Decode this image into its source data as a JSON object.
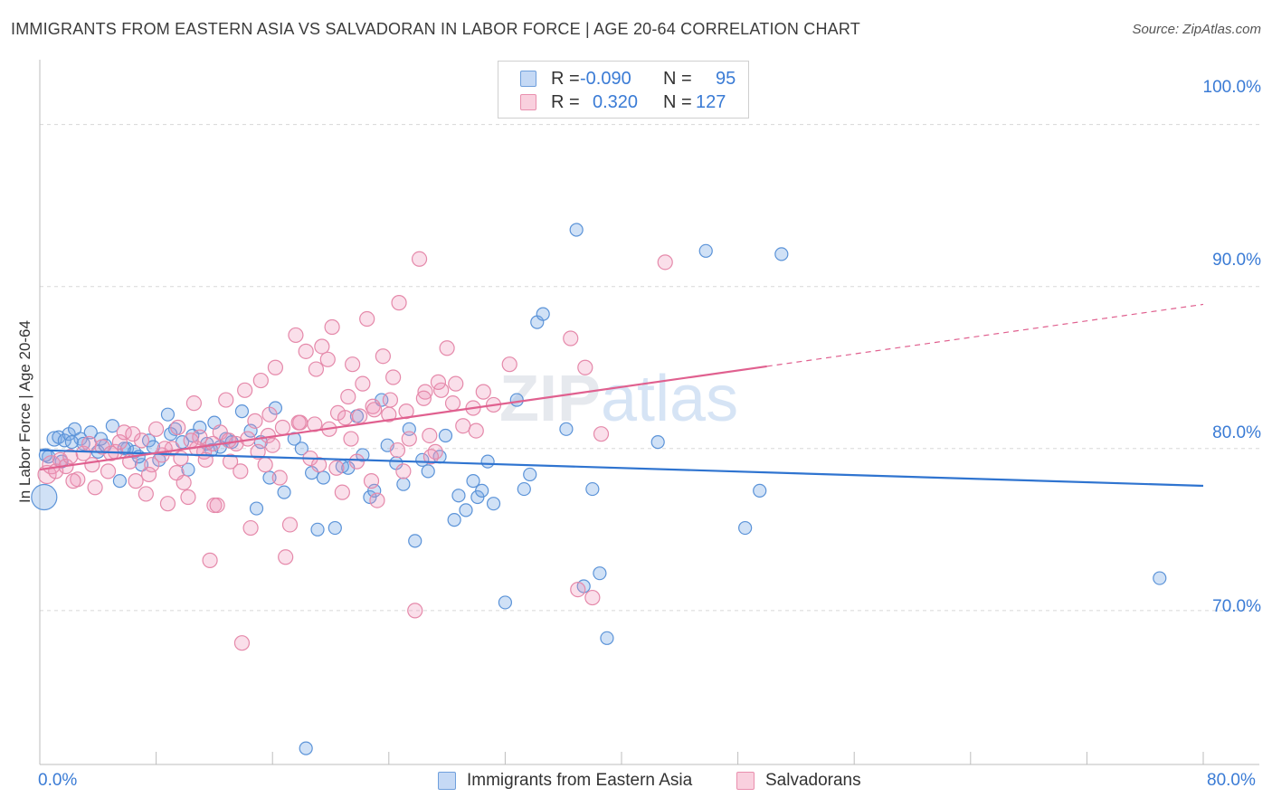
{
  "title": "IMMIGRANTS FROM EASTERN ASIA VS SALVADORAN IN LABOR FORCE | AGE 20-64 CORRELATION CHART",
  "source": "Source: ZipAtlas.com",
  "watermark": {
    "zip": "ZIP",
    "atlas": "atlas"
  },
  "legend": {
    "rows": [
      {
        "r_label": "R = ",
        "r_value": "-0.090",
        "n_label": "N = ",
        "n_value": "95",
        "color": "#a9c8ef",
        "border": "#6f9fdc"
      },
      {
        "r_label": "R = ",
        "r_value": "0.320",
        "n_label": "N = ",
        "n_value": "127",
        "color": "#f7c1d2",
        "border": "#e98fae"
      }
    ]
  },
  "bottom_legend": {
    "series1": "Immigrants from Eastern Asia",
    "series2": "Salvadorans"
  },
  "y_axis_label": "In Labor Force | Age 20-64",
  "y_ticks": [
    "100.0%",
    "90.0%",
    "80.0%",
    "70.0%"
  ],
  "x_ticks": [
    "0.0%",
    "80.0%"
  ],
  "colors": {
    "blue_fill": "rgba(120,170,230,0.35)",
    "blue_stroke": "#5b93d8",
    "blue_line": "#2f74d0",
    "pink_fill": "rgba(240,150,185,0.30)",
    "pink_stroke": "#e589aa",
    "pink_line": "#e0608f",
    "grid": "#d8d8d8",
    "tick_text": "#3a7bd5"
  },
  "chart_data": {
    "type": "scatter",
    "xlim": [
      0,
      80
    ],
    "ylim": [
      60.5,
      104
    ],
    "xlabel": "",
    "ylabel": "In Labor Force | Age 20-64",
    "y_tick_values": [
      100,
      90,
      80,
      70
    ],
    "grid": true,
    "legend_placement": "top-center",
    "series": [
      {
        "name": "Immigrants from Eastern Asia",
        "r": -0.09,
        "n": 95,
        "trend": {
          "x": [
            0,
            80
          ],
          "y": [
            79.9,
            77.7
          ],
          "dashed_from": null
        },
        "points": [
          [
            0.3,
            77.0,
            14
          ],
          [
            0.6,
            79.5,
            7
          ],
          [
            1.0,
            80.6,
            8
          ],
          [
            1.3,
            80.7,
            7
          ],
          [
            1.7,
            80.5,
            7
          ],
          [
            2.0,
            80.9,
            7
          ],
          [
            2.4,
            81.2,
            7
          ],
          [
            2.8,
            80.6,
            7
          ],
          [
            3.5,
            81.0,
            7
          ],
          [
            4.0,
            79.8,
            7
          ],
          [
            4.5,
            80.2,
            7
          ],
          [
            5.0,
            81.4,
            7
          ],
          [
            5.5,
            78.0,
            7
          ],
          [
            6.0,
            80.0,
            7
          ],
          [
            6.5,
            79.8,
            7
          ],
          [
            7.0,
            79.0,
            7
          ],
          [
            7.5,
            80.5,
            7
          ],
          [
            8.2,
            79.3,
            7
          ],
          [
            8.8,
            82.1,
            7
          ],
          [
            9.3,
            81.2,
            7
          ],
          [
            9.8,
            80.4,
            7
          ],
          [
            10.2,
            78.7,
            7
          ],
          [
            11.0,
            81.3,
            7
          ],
          [
            11.5,
            80.3,
            7
          ],
          [
            12.0,
            81.6,
            7
          ],
          [
            12.8,
            80.6,
            7
          ],
          [
            13.2,
            80.4,
            7
          ],
          [
            13.9,
            82.3,
            7
          ],
          [
            14.5,
            81.1,
            7
          ],
          [
            14.9,
            76.3,
            7
          ],
          [
            15.8,
            78.2,
            7
          ],
          [
            16.2,
            82.5,
            7
          ],
          [
            16.8,
            77.3,
            7
          ],
          [
            17.5,
            80.6,
            7
          ],
          [
            18.0,
            80.0,
            7
          ],
          [
            18.7,
            78.5,
            7
          ],
          [
            19.1,
            75.0,
            7
          ],
          [
            19.5,
            78.2,
            7
          ],
          [
            20.3,
            75.1,
            7
          ],
          [
            20.8,
            78.9,
            7
          ],
          [
            21.2,
            78.8,
            7
          ],
          [
            21.8,
            82.0,
            7
          ],
          [
            22.2,
            79.6,
            7
          ],
          [
            22.7,
            77.0,
            7
          ],
          [
            23.0,
            77.4,
            7
          ],
          [
            23.5,
            83.0,
            7
          ],
          [
            23.9,
            80.2,
            7
          ],
          [
            24.5,
            79.1,
            7
          ],
          [
            25.0,
            77.8,
            7
          ],
          [
            25.4,
            81.2,
            7
          ],
          [
            25.8,
            74.3,
            7
          ],
          [
            26.3,
            79.3,
            7
          ],
          [
            26.7,
            78.6,
            7
          ],
          [
            27.5,
            79.5,
            7
          ],
          [
            27.9,
            80.8,
            7
          ],
          [
            28.5,
            75.6,
            7
          ],
          [
            28.8,
            77.1,
            7
          ],
          [
            29.3,
            76.2,
            7
          ],
          [
            29.8,
            78.0,
            7
          ],
          [
            30.1,
            77.0,
            7
          ],
          [
            30.4,
            77.4,
            7
          ],
          [
            30.8,
            79.2,
            7
          ],
          [
            31.2,
            76.6,
            7
          ],
          [
            32.0,
            70.5,
            7
          ],
          [
            32.8,
            83.0,
            7
          ],
          [
            33.3,
            77.5,
            7
          ],
          [
            33.7,
            78.4,
            7
          ],
          [
            34.2,
            87.8,
            7
          ],
          [
            34.6,
            88.3,
            7
          ],
          [
            36.2,
            81.2,
            7
          ],
          [
            36.9,
            93.5,
            7
          ],
          [
            37.4,
            71.5,
            7
          ],
          [
            38.0,
            77.5,
            7
          ],
          [
            38.5,
            72.3,
            7
          ],
          [
            39.0,
            68.3,
            7
          ],
          [
            42.5,
            80.4,
            7
          ],
          [
            45.8,
            92.2,
            7
          ],
          [
            48.5,
            75.1,
            7
          ],
          [
            49.5,
            77.4,
            7
          ],
          [
            51.0,
            92.0,
            7
          ],
          [
            77.0,
            72.0,
            7
          ],
          [
            18.3,
            61.5,
            7
          ],
          [
            3.0,
            80.3,
            7
          ],
          [
            1.5,
            79.2,
            7
          ],
          [
            0.4,
            79.6,
            7
          ],
          [
            6.8,
            79.5,
            7
          ],
          [
            9.0,
            80.9,
            7
          ],
          [
            12.4,
            80.1,
            7
          ],
          [
            15.2,
            80.4,
            7
          ],
          [
            10.5,
            80.8,
            7
          ],
          [
            4.2,
            80.6,
            7
          ],
          [
            2.2,
            80.4,
            7
          ],
          [
            7.8,
            80.1,
            7
          ],
          [
            5.8,
            80.0,
            7
          ],
          [
            11.8,
            79.9,
            7
          ]
        ]
      },
      {
        "name": "Salvadorans",
        "r": 0.32,
        "n": 127,
        "trend": {
          "x": [
            0,
            80
          ],
          "y": [
            78.7,
            88.9
          ],
          "dashed_from": 50
        },
        "points": [
          [
            0.5,
            78.4,
            10
          ],
          [
            0.8,
            79.0,
            10
          ],
          [
            1.1,
            78.6,
            8
          ],
          [
            1.4,
            79.3,
            8
          ],
          [
            1.8,
            78.9,
            8
          ],
          [
            2.1,
            79.5,
            8
          ],
          [
            2.6,
            78.1,
            8
          ],
          [
            3.0,
            79.7,
            8
          ],
          [
            3.4,
            80.3,
            8
          ],
          [
            3.8,
            77.6,
            8
          ],
          [
            4.3,
            80.1,
            8
          ],
          [
            4.7,
            78.6,
            8
          ],
          [
            5.2,
            79.8,
            8
          ],
          [
            5.5,
            80.4,
            8
          ],
          [
            5.8,
            81.0,
            8
          ],
          [
            6.2,
            79.2,
            8
          ],
          [
            6.6,
            78.0,
            8
          ],
          [
            7.0,
            80.5,
            8
          ],
          [
            7.3,
            77.2,
            8
          ],
          [
            7.7,
            79.0,
            8
          ],
          [
            8.0,
            81.2,
            8
          ],
          [
            8.4,
            79.6,
            8
          ],
          [
            8.8,
            76.6,
            8
          ],
          [
            9.1,
            80.0,
            8
          ],
          [
            9.5,
            81.3,
            8
          ],
          [
            9.9,
            77.9,
            8
          ],
          [
            10.2,
            77.0,
            8
          ],
          [
            10.6,
            82.8,
            8
          ],
          [
            11.0,
            80.7,
            8
          ],
          [
            11.3,
            79.8,
            8
          ],
          [
            11.7,
            73.1,
            8
          ],
          [
            12.0,
            76.5,
            8
          ],
          [
            12.4,
            81.0,
            8
          ],
          [
            12.8,
            83.0,
            8
          ],
          [
            13.1,
            79.2,
            8
          ],
          [
            13.5,
            80.3,
            8
          ],
          [
            13.8,
            78.6,
            8
          ],
          [
            14.1,
            83.6,
            8
          ],
          [
            14.5,
            75.1,
            8
          ],
          [
            14.8,
            81.7,
            8
          ],
          [
            15.2,
            84.2,
            8
          ],
          [
            15.5,
            79.0,
            8
          ],
          [
            15.8,
            82.1,
            8
          ],
          [
            16.2,
            85.0,
            8
          ],
          [
            16.5,
            78.2,
            8
          ],
          [
            16.9,
            73.3,
            8
          ],
          [
            17.2,
            75.3,
            8
          ],
          [
            17.6,
            87.0,
            8
          ],
          [
            17.9,
            81.6,
            8
          ],
          [
            18.3,
            86.0,
            8
          ],
          [
            18.6,
            79.4,
            8
          ],
          [
            19.0,
            84.9,
            8
          ],
          [
            19.4,
            86.3,
            8
          ],
          [
            19.8,
            85.5,
            8
          ],
          [
            20.1,
            87.5,
            8
          ],
          [
            20.5,
            82.2,
            8
          ],
          [
            20.8,
            77.3,
            8
          ],
          [
            21.2,
            83.2,
            8
          ],
          [
            21.5,
            85.2,
            8
          ],
          [
            21.8,
            79.2,
            8
          ],
          [
            22.2,
            84.0,
            8
          ],
          [
            22.5,
            88.0,
            8
          ],
          [
            22.9,
            82.6,
            8
          ],
          [
            23.2,
            76.8,
            8
          ],
          [
            23.6,
            85.7,
            8
          ],
          [
            24.0,
            82.1,
            8
          ],
          [
            24.3,
            84.4,
            8
          ],
          [
            24.7,
            89.0,
            8
          ],
          [
            25.0,
            78.6,
            8
          ],
          [
            25.4,
            80.6,
            8
          ],
          [
            25.8,
            70.0,
            8
          ],
          [
            26.1,
            91.7,
            8
          ],
          [
            26.5,
            83.5,
            8
          ],
          [
            26.8,
            80.8,
            8
          ],
          [
            27.2,
            79.8,
            8
          ],
          [
            27.6,
            83.6,
            8
          ],
          [
            28.0,
            86.2,
            8
          ],
          [
            28.4,
            82.8,
            8
          ],
          [
            29.1,
            81.4,
            8
          ],
          [
            29.8,
            82.5,
            8
          ],
          [
            30.5,
            83.5,
            8
          ],
          [
            31.2,
            82.7,
            8
          ],
          [
            32.3,
            85.2,
            8
          ],
          [
            36.5,
            86.8,
            8
          ],
          [
            37.0,
            71.3,
            8
          ],
          [
            37.5,
            85.0,
            8
          ],
          [
            38.0,
            70.8,
            8
          ],
          [
            38.6,
            80.9,
            8
          ],
          [
            43.0,
            91.5,
            8
          ],
          [
            2.3,
            78.0,
            8
          ],
          [
            3.6,
            79.0,
            8
          ],
          [
            4.9,
            79.7,
            8
          ],
          [
            6.4,
            80.9,
            8
          ],
          [
            7.5,
            78.4,
            8
          ],
          [
            8.6,
            80.0,
            8
          ],
          [
            9.7,
            79.4,
            8
          ],
          [
            10.8,
            80.0,
            8
          ],
          [
            11.9,
            80.3,
            8
          ],
          [
            13.0,
            80.5,
            8
          ],
          [
            14.3,
            80.6,
            8
          ],
          [
            15.7,
            80.8,
            8
          ],
          [
            16.7,
            81.3,
            8
          ],
          [
            17.8,
            81.6,
            8
          ],
          [
            18.9,
            81.5,
            8
          ],
          [
            19.9,
            81.2,
            8
          ],
          [
            21.0,
            81.9,
            8
          ],
          [
            22.0,
            82.0,
            8
          ],
          [
            23.0,
            82.4,
            8
          ],
          [
            24.1,
            83.0,
            8
          ],
          [
            25.2,
            82.3,
            8
          ],
          [
            26.4,
            83.1,
            8
          ],
          [
            27.4,
            84.1,
            8
          ],
          [
            28.6,
            84.0,
            8
          ],
          [
            12.2,
            76.5,
            8
          ],
          [
            13.9,
            68.0,
            8
          ],
          [
            15.0,
            79.8,
            8
          ],
          [
            16.0,
            80.2,
            8
          ],
          [
            19.2,
            79.0,
            8
          ],
          [
            20.4,
            78.8,
            8
          ],
          [
            21.4,
            80.6,
            8
          ],
          [
            22.8,
            78.0,
            8
          ],
          [
            24.6,
            79.9,
            8
          ],
          [
            26.9,
            79.5,
            8
          ],
          [
            30.0,
            81.1,
            8
          ],
          [
            9.4,
            78.5,
            8
          ],
          [
            10.4,
            80.5,
            8
          ],
          [
            11.4,
            79.3,
            8
          ]
        ]
      }
    ]
  }
}
